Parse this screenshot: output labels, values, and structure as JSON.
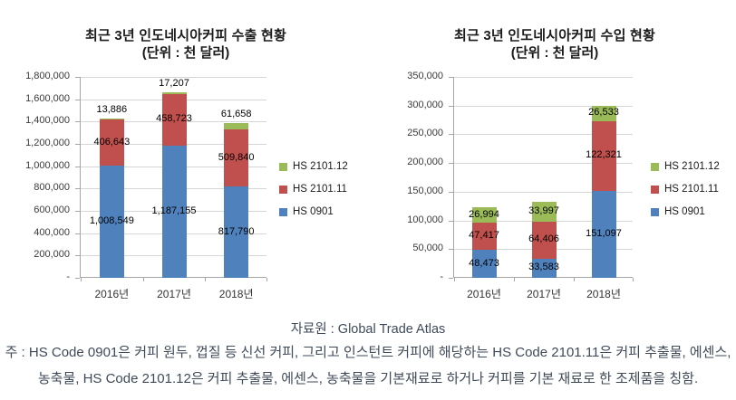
{
  "page": {
    "source": "자료원 : Global Trade Atlas",
    "note_line1": "주 : HS Code 0901은 커피 원두, 껍질 등 신선 커피, 그리고 인스턴트 커피에 해당하는 HS Code 2101.11은 커피 추출물, 에센스,",
    "note_line2": "농축물, HS Code 2101.12은 커피 추출물, 에센스, 농축물을 기본재료로 하거나 커피를 기본 재료로 한 조제품을 칭함."
  },
  "colors": {
    "hs0901": "#4F81BD",
    "hs210111": "#C0504D",
    "hs210112": "#9BBB59",
    "gridline": "#D6D6D6",
    "axis": "#A6A6A6"
  },
  "chart_data": [
    {
      "type": "bar",
      "stacked": true,
      "title": "최근 3년 인도네시아커피 수출 현황",
      "subtitle": "(단위 : 천 달러)",
      "categories": [
        "2016년",
        "2017년",
        "2018년"
      ],
      "series": [
        {
          "name": "HS 0901",
          "color_key": "hs0901",
          "values": [
            1008549,
            1187155,
            817790
          ]
        },
        {
          "name": "HS 2101.11",
          "color_key": "hs210111",
          "values": [
            406643,
            458723,
            509840
          ]
        },
        {
          "name": "HS 2101.12",
          "color_key": "hs210112",
          "values": [
            13886,
            17207,
            61658
          ]
        }
      ],
      "ylim": [
        0,
        1800000
      ],
      "ystep": 200000,
      "zero_tick_label": "-",
      "grid": true,
      "legend_position": "right"
    },
    {
      "type": "bar",
      "stacked": true,
      "title": "최근 3년 인도네시아커피 수입 현황",
      "subtitle": "(단위 : 천 달러)",
      "categories": [
        "2016년",
        "2017년",
        "2018년"
      ],
      "series": [
        {
          "name": "HS 0901",
          "color_key": "hs0901",
          "values": [
            48473,
            33583,
            151097
          ]
        },
        {
          "name": "HS 2101.11",
          "color_key": "hs210111",
          "values": [
            47417,
            64406,
            122321
          ]
        },
        {
          "name": "HS 2101.12",
          "color_key": "hs210112",
          "values": [
            26994,
            33997,
            26533
          ]
        }
      ],
      "ylim": [
        0,
        350000
      ],
      "ystep": 50000,
      "zero_tick_label": "-",
      "grid": true,
      "legend_position": "right"
    }
  ]
}
